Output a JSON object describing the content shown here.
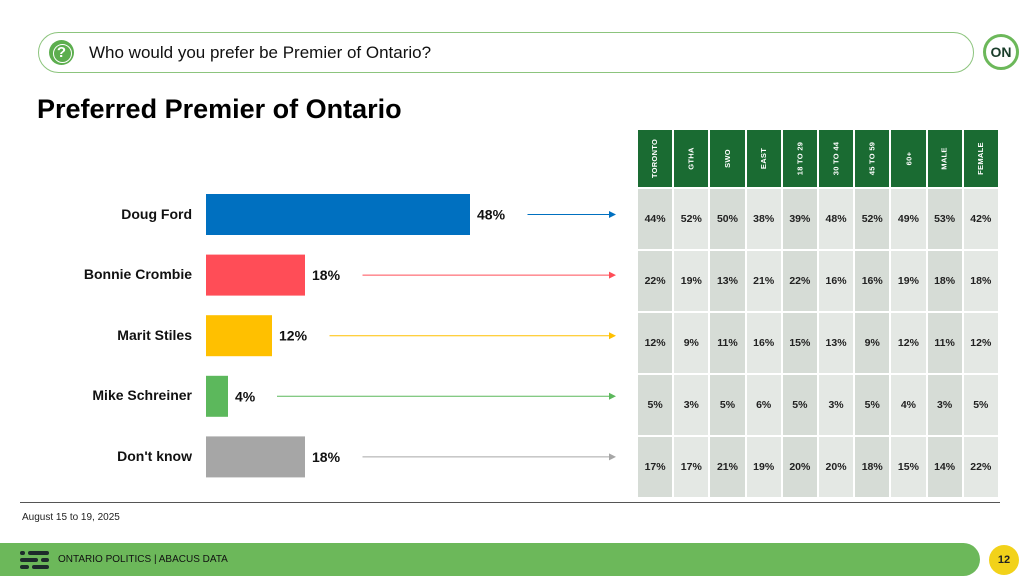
{
  "question": {
    "icon": "question-icon",
    "text": "Who would you prefer be Premier of Ontario?"
  },
  "logo": {
    "icon": "on-logo-icon",
    "text": "ON"
  },
  "title": "Preferred Premier of Ontario",
  "chart_data": {
    "type": "bar",
    "orientation": "horizontal",
    "title": "Preferred Premier of Ontario",
    "categories": [
      "Doug Ford",
      "Bonnie Crombie",
      "Marit Stiles",
      "Mike Schreiner",
      "Don't know"
    ],
    "values": [
      48,
      18,
      12,
      4,
      18
    ],
    "value_labels": [
      "48%",
      "18%",
      "12%",
      "4%",
      "18%"
    ],
    "colors": [
      "#0070c0",
      "#ff4d57",
      "#ffc000",
      "#5cb85c",
      "#a6a6a6"
    ],
    "xlim": [
      0,
      100
    ],
    "unit": "%",
    "grid": false
  },
  "crosstab": {
    "columns": [
      "TORONTO",
      "GTHA",
      "SWO",
      "EAST",
      "18 TO 29",
      "30 TO 44",
      "45 TO 59",
      "60+",
      "MALE",
      "FEMALE"
    ],
    "rows": [
      [
        "44%",
        "52%",
        "50%",
        "38%",
        "39%",
        "48%",
        "52%",
        "49%",
        "53%",
        "42%"
      ],
      [
        "22%",
        "19%",
        "13%",
        "21%",
        "22%",
        "16%",
        "16%",
        "19%",
        "18%",
        "18%"
      ],
      [
        "12%",
        "9%",
        "11%",
        "16%",
        "15%",
        "13%",
        "9%",
        "12%",
        "11%",
        "12%"
      ],
      [
        "5%",
        "3%",
        "5%",
        "6%",
        "5%",
        "3%",
        "5%",
        "4%",
        "3%",
        "5%"
      ],
      [
        "17%",
        "17%",
        "21%",
        "19%",
        "20%",
        "20%",
        "18%",
        "15%",
        "14%",
        "22%"
      ]
    ],
    "header_color": "#1a6b32"
  },
  "date_range": "August 15 to 19, 2025",
  "footer": {
    "icon": "abacus-icon",
    "text": "ONTARIO POLITICS  |  ABACUS DATA",
    "page_number": "12"
  }
}
